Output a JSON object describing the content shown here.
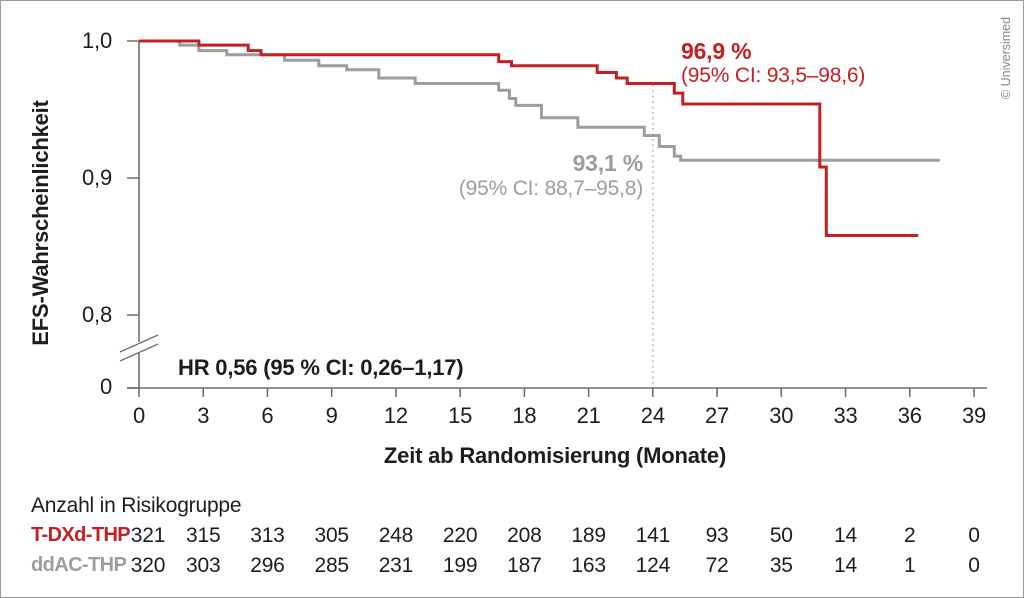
{
  "credit": "© Universimed",
  "chart_data": {
    "type": "line",
    "subtype": "kaplan-meier-step",
    "title": "",
    "xlabel": "Zeit ab Randomisierung (Monate)",
    "ylabel": "EFS-Wahrscheinlichkeit",
    "hr_annotation": "HR 0,56 (95 % CI: 0,26–1,17)",
    "x_ticks": [
      0,
      3,
      6,
      9,
      12,
      15,
      18,
      21,
      24,
      27,
      30,
      33,
      36,
      39
    ],
    "y_ticks": [
      {
        "label": "1,0",
        "value": 1.0
      },
      {
        "label": "0,9",
        "value": 0.9
      },
      {
        "label": "0,8",
        "value": 0.8
      },
      {
        "label": "0",
        "value": 0
      }
    ],
    "axis_break": true,
    "xlim": [
      0,
      39.6
    ],
    "ylim_shown": [
      0.8,
      1.0
    ],
    "grid": false,
    "landmark_x": 24,
    "landmark_style": "dotted-vertical",
    "axis_color": "#6f6f6e",
    "landmark_color": "#b3b3b2",
    "series": [
      {
        "name": "T-DXd-THP",
        "color": "#c32024",
        "annotation_value": "96,9 %",
        "annotation_ci": "(95% CI: 93,5–98,6)",
        "steps": [
          [
            0,
            1.0
          ],
          [
            2.8,
            0.997
          ],
          [
            5.1,
            0.993
          ],
          [
            5.7,
            0.99
          ],
          [
            16.8,
            0.985
          ],
          [
            17.4,
            0.982
          ],
          [
            21.4,
            0.977
          ],
          [
            22.3,
            0.973
          ],
          [
            22.8,
            0.969
          ],
          [
            25.0,
            0.962
          ],
          [
            25.4,
            0.954
          ],
          [
            31.8,
            0.908
          ],
          [
            32.1,
            0.858
          ]
        ],
        "end_x": 36.4
      },
      {
        "name": "ddAC-THP",
        "color": "#9d9d9c",
        "annotation_value": "93,1 %",
        "annotation_ci": "(95% CI: 88,7–95,8)",
        "steps": [
          [
            0,
            1.0
          ],
          [
            1.9,
            0.997
          ],
          [
            2.8,
            0.993
          ],
          [
            4.1,
            0.99
          ],
          [
            6.8,
            0.986
          ],
          [
            8.4,
            0.982
          ],
          [
            9.7,
            0.979
          ],
          [
            11.2,
            0.973
          ],
          [
            12.9,
            0.969
          ],
          [
            16.8,
            0.964
          ],
          [
            17.3,
            0.958
          ],
          [
            17.6,
            0.953
          ],
          [
            18.8,
            0.944
          ],
          [
            20.5,
            0.937
          ],
          [
            23.6,
            0.931
          ],
          [
            24.3,
            0.923
          ],
          [
            25.0,
            0.916
          ],
          [
            25.3,
            0.913
          ]
        ],
        "end_x": 37.4
      }
    ]
  },
  "risk_table": {
    "title": "Anzahl in Risikogruppe",
    "rows": [
      {
        "label": "T-DXd-THP",
        "color": "#c32024",
        "values": [
          "321",
          "315",
          "313",
          "305",
          "248",
          "220",
          "208",
          "189",
          "141",
          "93",
          "50",
          "14",
          "2",
          "0"
        ]
      },
      {
        "label": "ddAC-THP",
        "color": "#9d9d9c",
        "values": [
          "320",
          "303",
          "296",
          "285",
          "231",
          "199",
          "187",
          "163",
          "124",
          "72",
          "35",
          "14",
          "1",
          "0"
        ]
      }
    ]
  }
}
